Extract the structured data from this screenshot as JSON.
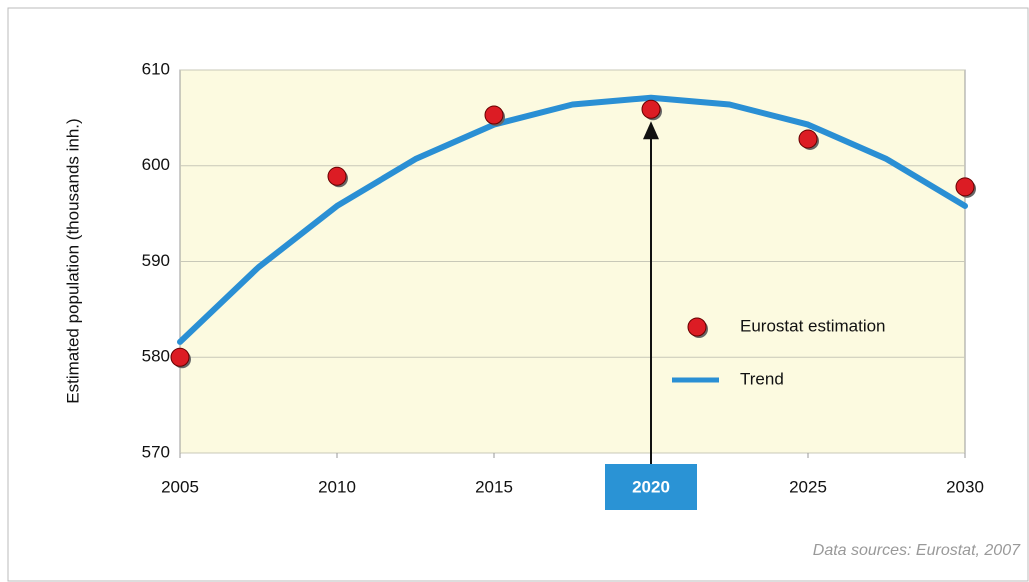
{
  "chart_data": {
    "type": "scatter-trend",
    "ylabel": "Estimated population (thousands inh.)",
    "source": "Data sources: Eurostat, 2007",
    "xlim": [
      2005,
      2030
    ],
    "xticks": [
      2005,
      2010,
      2015,
      2020,
      2025,
      2030
    ],
    "ylim": [
      570,
      610
    ],
    "yticks": [
      570,
      580,
      590,
      600,
      610
    ],
    "grid": true,
    "highlight_x": 2020,
    "highlight_color": "#2a93d5",
    "plot_background": "#fcfae0",
    "legend": "right",
    "series": [
      {
        "name": "Eurostat estimation",
        "kind": "points",
        "color": "#dc1c24",
        "x": [
          2005,
          2010,
          2015,
          2020,
          2025,
          2030
        ],
        "values": [
          580,
          598.9,
          605.3,
          605.9,
          602.8,
          597.8
        ]
      },
      {
        "name": "Trend",
        "kind": "line",
        "color": "#2a8fd4",
        "x": [
          2005,
          2007.5,
          2010,
          2012.5,
          2015,
          2017.5,
          2020,
          2022.5,
          2025,
          2027.5,
          2030
        ],
        "values": [
          581.6,
          589.4,
          595.8,
          600.7,
          604.3,
          606.4,
          607.1,
          606.4,
          604.3,
          600.7,
          595.8
        ]
      }
    ]
  }
}
